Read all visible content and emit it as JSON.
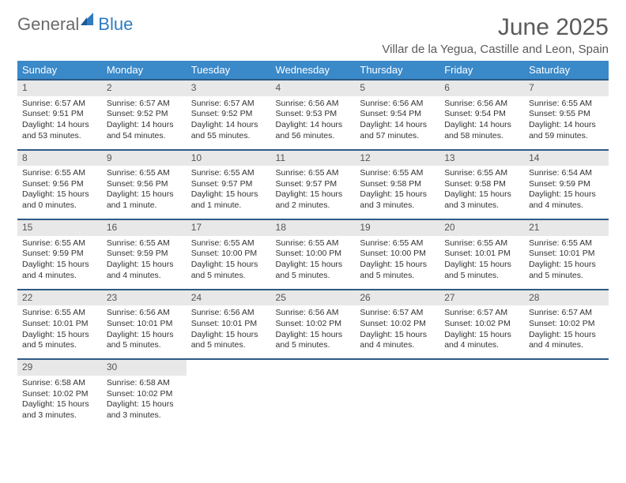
{
  "logo": {
    "text1": "General",
    "text2": "Blue"
  },
  "title": "June 2025",
  "location": "Villar de la Yegua, Castille and Leon, Spain",
  "colors": {
    "header_bg": "#3a89c9",
    "header_text": "#ffffff",
    "daynum_bg": "#e8e8e8",
    "border": "#2e5a85",
    "logo_gray": "#6a6a6a",
    "logo_blue": "#2e7cc1"
  },
  "weekday_labels": [
    "Sunday",
    "Monday",
    "Tuesday",
    "Wednesday",
    "Thursday",
    "Friday",
    "Saturday"
  ],
  "weeks": [
    {
      "nums": [
        "1",
        "2",
        "3",
        "4",
        "5",
        "6",
        "7"
      ],
      "cells": [
        {
          "sunrise": "Sunrise: 6:57 AM",
          "sunset": "Sunset: 9:51 PM",
          "day1": "Daylight: 14 hours",
          "day2": "and 53 minutes."
        },
        {
          "sunrise": "Sunrise: 6:57 AM",
          "sunset": "Sunset: 9:52 PM",
          "day1": "Daylight: 14 hours",
          "day2": "and 54 minutes."
        },
        {
          "sunrise": "Sunrise: 6:57 AM",
          "sunset": "Sunset: 9:52 PM",
          "day1": "Daylight: 14 hours",
          "day2": "and 55 minutes."
        },
        {
          "sunrise": "Sunrise: 6:56 AM",
          "sunset": "Sunset: 9:53 PM",
          "day1": "Daylight: 14 hours",
          "day2": "and 56 minutes."
        },
        {
          "sunrise": "Sunrise: 6:56 AM",
          "sunset": "Sunset: 9:54 PM",
          "day1": "Daylight: 14 hours",
          "day2": "and 57 minutes."
        },
        {
          "sunrise": "Sunrise: 6:56 AM",
          "sunset": "Sunset: 9:54 PM",
          "day1": "Daylight: 14 hours",
          "day2": "and 58 minutes."
        },
        {
          "sunrise": "Sunrise: 6:55 AM",
          "sunset": "Sunset: 9:55 PM",
          "day1": "Daylight: 14 hours",
          "day2": "and 59 minutes."
        }
      ]
    },
    {
      "nums": [
        "8",
        "9",
        "10",
        "11",
        "12",
        "13",
        "14"
      ],
      "cells": [
        {
          "sunrise": "Sunrise: 6:55 AM",
          "sunset": "Sunset: 9:56 PM",
          "day1": "Daylight: 15 hours",
          "day2": "and 0 minutes."
        },
        {
          "sunrise": "Sunrise: 6:55 AM",
          "sunset": "Sunset: 9:56 PM",
          "day1": "Daylight: 15 hours",
          "day2": "and 1 minute."
        },
        {
          "sunrise": "Sunrise: 6:55 AM",
          "sunset": "Sunset: 9:57 PM",
          "day1": "Daylight: 15 hours",
          "day2": "and 1 minute."
        },
        {
          "sunrise": "Sunrise: 6:55 AM",
          "sunset": "Sunset: 9:57 PM",
          "day1": "Daylight: 15 hours",
          "day2": "and 2 minutes."
        },
        {
          "sunrise": "Sunrise: 6:55 AM",
          "sunset": "Sunset: 9:58 PM",
          "day1": "Daylight: 15 hours",
          "day2": "and 3 minutes."
        },
        {
          "sunrise": "Sunrise: 6:55 AM",
          "sunset": "Sunset: 9:58 PM",
          "day1": "Daylight: 15 hours",
          "day2": "and 3 minutes."
        },
        {
          "sunrise": "Sunrise: 6:54 AM",
          "sunset": "Sunset: 9:59 PM",
          "day1": "Daylight: 15 hours",
          "day2": "and 4 minutes."
        }
      ]
    },
    {
      "nums": [
        "15",
        "16",
        "17",
        "18",
        "19",
        "20",
        "21"
      ],
      "cells": [
        {
          "sunrise": "Sunrise: 6:55 AM",
          "sunset": "Sunset: 9:59 PM",
          "day1": "Daylight: 15 hours",
          "day2": "and 4 minutes."
        },
        {
          "sunrise": "Sunrise: 6:55 AM",
          "sunset": "Sunset: 9:59 PM",
          "day1": "Daylight: 15 hours",
          "day2": "and 4 minutes."
        },
        {
          "sunrise": "Sunrise: 6:55 AM",
          "sunset": "Sunset: 10:00 PM",
          "day1": "Daylight: 15 hours",
          "day2": "and 5 minutes."
        },
        {
          "sunrise": "Sunrise: 6:55 AM",
          "sunset": "Sunset: 10:00 PM",
          "day1": "Daylight: 15 hours",
          "day2": "and 5 minutes."
        },
        {
          "sunrise": "Sunrise: 6:55 AM",
          "sunset": "Sunset: 10:00 PM",
          "day1": "Daylight: 15 hours",
          "day2": "and 5 minutes."
        },
        {
          "sunrise": "Sunrise: 6:55 AM",
          "sunset": "Sunset: 10:01 PM",
          "day1": "Daylight: 15 hours",
          "day2": "and 5 minutes."
        },
        {
          "sunrise": "Sunrise: 6:55 AM",
          "sunset": "Sunset: 10:01 PM",
          "day1": "Daylight: 15 hours",
          "day2": "and 5 minutes."
        }
      ]
    },
    {
      "nums": [
        "22",
        "23",
        "24",
        "25",
        "26",
        "27",
        "28"
      ],
      "cells": [
        {
          "sunrise": "Sunrise: 6:55 AM",
          "sunset": "Sunset: 10:01 PM",
          "day1": "Daylight: 15 hours",
          "day2": "and 5 minutes."
        },
        {
          "sunrise": "Sunrise: 6:56 AM",
          "sunset": "Sunset: 10:01 PM",
          "day1": "Daylight: 15 hours",
          "day2": "and 5 minutes."
        },
        {
          "sunrise": "Sunrise: 6:56 AM",
          "sunset": "Sunset: 10:01 PM",
          "day1": "Daylight: 15 hours",
          "day2": "and 5 minutes."
        },
        {
          "sunrise": "Sunrise: 6:56 AM",
          "sunset": "Sunset: 10:02 PM",
          "day1": "Daylight: 15 hours",
          "day2": "and 5 minutes."
        },
        {
          "sunrise": "Sunrise: 6:57 AM",
          "sunset": "Sunset: 10:02 PM",
          "day1": "Daylight: 15 hours",
          "day2": "and 4 minutes."
        },
        {
          "sunrise": "Sunrise: 6:57 AM",
          "sunset": "Sunset: 10:02 PM",
          "day1": "Daylight: 15 hours",
          "day2": "and 4 minutes."
        },
        {
          "sunrise": "Sunrise: 6:57 AM",
          "sunset": "Sunset: 10:02 PM",
          "day1": "Daylight: 15 hours",
          "day2": "and 4 minutes."
        }
      ]
    },
    {
      "nums": [
        "29",
        "30",
        "",
        "",
        "",
        "",
        ""
      ],
      "cells": [
        {
          "sunrise": "Sunrise: 6:58 AM",
          "sunset": "Sunset: 10:02 PM",
          "day1": "Daylight: 15 hours",
          "day2": "and 3 minutes."
        },
        {
          "sunrise": "Sunrise: 6:58 AM",
          "sunset": "Sunset: 10:02 PM",
          "day1": "Daylight: 15 hours",
          "day2": "and 3 minutes."
        },
        null,
        null,
        null,
        null,
        null
      ]
    }
  ]
}
